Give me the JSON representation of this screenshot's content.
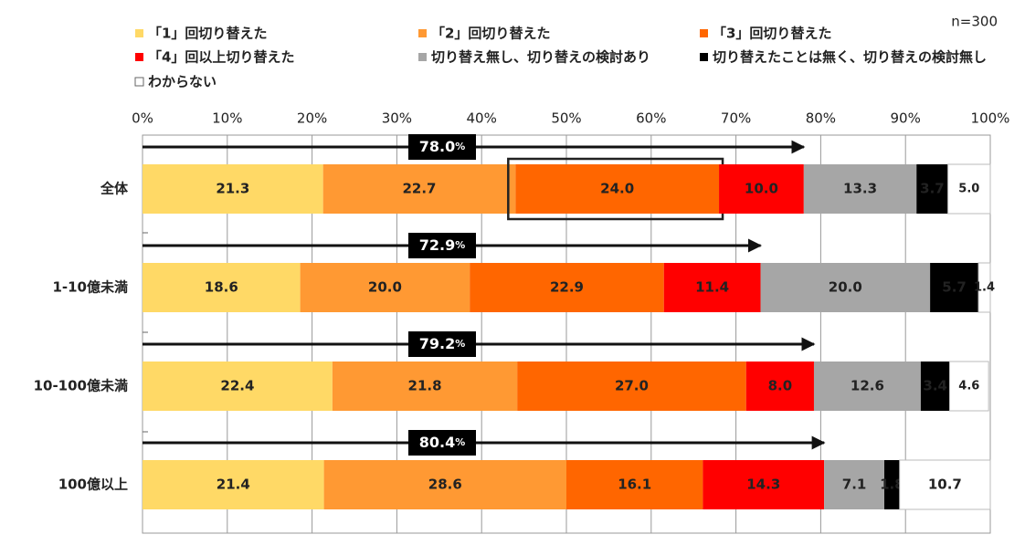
{
  "chart_data": {
    "type": "stacked_bar_horizontal",
    "note": "n=300",
    "categories": [
      "全体",
      "1-10億未満",
      "10-100億未満",
      "100億以上"
    ],
    "series": [
      {
        "name": "「1」回切り替えた",
        "color": "#FFD966",
        "label_color": "#222222",
        "values": [
          21.3,
          18.6,
          22.4,
          21.4
        ]
      },
      {
        "name": "「2」回切り替えた",
        "color": "#FF9933",
        "label_color": "#222222",
        "values": [
          22.7,
          20.0,
          21.8,
          28.6
        ],
        "value_labels": [
          "22.7",
          "20.0",
          "21.8",
          "28.6"
        ]
      },
      {
        "name": "「3」回切り替えた",
        "color": "#FF6600",
        "label_color": "#ffffff",
        "values": [
          24.0,
          22.9,
          27.0,
          16.1
        ],
        "value_labels": [
          "24.0",
          "22.9",
          "27.0",
          "16.1"
        ]
      },
      {
        "name": "「4」回以上切り替えた",
        "color": "#FF0000",
        "label_color": "#ffffff",
        "values": [
          10.0,
          11.4,
          8.0,
          14.3
        ],
        "value_labels": [
          "10.0",
          "11.4",
          "8.0",
          "14.3"
        ]
      },
      {
        "name": "切り替え無し、切り替えの検討あり",
        "color": "#A6A6A6",
        "label_color": "#222222",
        "values": [
          13.3,
          20.0,
          12.6,
          7.1
        ],
        "value_labels": [
          "13.3",
          "20.0",
          "12.6",
          "7.1"
        ]
      },
      {
        "name": "切り替えたことは無く、切り替えの検討無し",
        "color": "#000000",
        "label_color": "#ffffff",
        "values": [
          3.7,
          5.7,
          3.4,
          1.8
        ]
      },
      {
        "name": "わからない",
        "color": "#FFFFFF",
        "label_color": "#222222",
        "values": [
          5.0,
          1.4,
          4.6,
          10.7
        ],
        "value_labels": [
          "5.0",
          "1.4",
          "4.6",
          "10.7"
        ]
      }
    ],
    "totals": {
      "values": [
        78.0,
        72.9,
        79.2,
        80.4
      ],
      "value_labels": [
        "78.0",
        "72.9",
        "79.2",
        "80.4"
      ],
      "unit": "%"
    },
    "highlight": {
      "series": 2,
      "category": 0
    },
    "xlim": [
      0,
      100
    ],
    "xticks": [
      {
        "value": 0,
        "label": "0%"
      },
      {
        "value": 10,
        "label": "10%"
      },
      {
        "value": 20,
        "label": "20%"
      },
      {
        "value": 30,
        "label": "30%"
      },
      {
        "value": 40,
        "label": "40%"
      },
      {
        "value": 50,
        "label": "50%"
      },
      {
        "value": 60,
        "label": "60%"
      },
      {
        "value": 70,
        "label": "70%"
      },
      {
        "value": 80,
        "label": "80%"
      },
      {
        "value": 90,
        "label": "90%"
      },
      {
        "value": 100,
        "label": "100%"
      }
    ],
    "grid": true
  }
}
